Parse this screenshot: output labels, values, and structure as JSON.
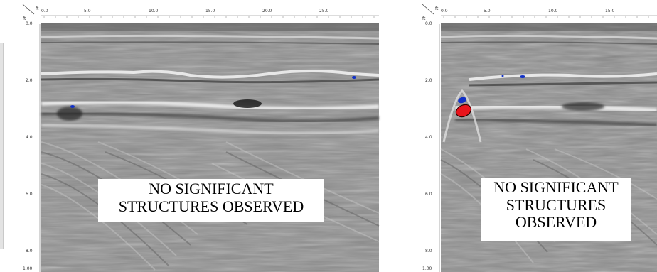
{
  "left_panel": {
    "axis_x_labels": [
      "0.0",
      "5.0",
      "10.0",
      "15.0",
      "20.0",
      "25.0"
    ],
    "axis_y_labels": [
      "0.0",
      "2.0",
      "4.0",
      "6.0",
      "8.0"
    ],
    "corner_label": "ft",
    "corner_label_y": "ft",
    "bottom_label": "1.00",
    "caption_lines": [
      "NO SIGNIFICANT",
      "STRUCTURES OBSERVED"
    ]
  },
  "right_panel": {
    "axis_x_labels": [
      "0.0",
      "5.0",
      "10.0",
      "15.0"
    ],
    "axis_y_labels": [
      "0.0",
      "2.0",
      "4.0",
      "6.0",
      "8.0"
    ],
    "corner_label": "ft",
    "corner_label_y": "ft",
    "bottom_label": "1.00",
    "caption_lines": [
      "NO SIGNIFICANT",
      "STRUCTURES",
      "OBSERVED"
    ]
  },
  "colors": {
    "radar_mid": "#8e8e8e",
    "anomaly_red": "#e8141c",
    "anomaly_blue": "#1030c8",
    "caption_bg": "#ffffff"
  }
}
